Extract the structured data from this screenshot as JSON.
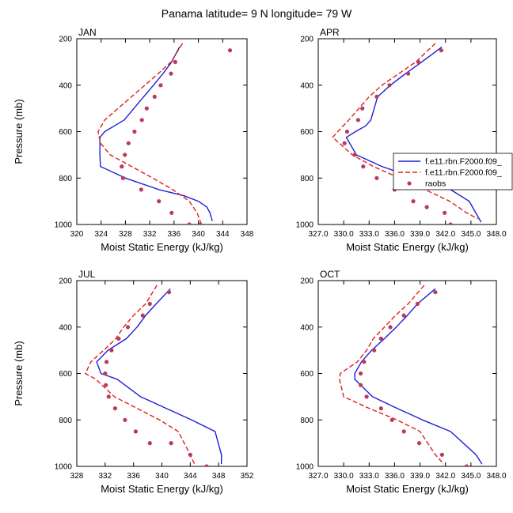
{
  "figure": {
    "title": "Panama  latitude= 9 N longitude= 79 W"
  },
  "legend": {
    "placement": "right of APR panel",
    "entries": [
      {
        "label": "f.e11.rbn.F2000.f09_",
        "style": "solid",
        "color": "#1f1fd6"
      },
      {
        "label": "f.e11.rbn.F2000.f09_",
        "style": "dashed",
        "color": "#e0201a"
      },
      {
        "label": "raobs",
        "style": "dot",
        "color": "#b83b5e"
      }
    ]
  },
  "chart_data": [
    {
      "type": "line",
      "panel": "JAN",
      "xlabel": "Moist Static Energy (kJ/kg)",
      "ylabel": "Pressure (mb)",
      "xlim": [
        320,
        348
      ],
      "xticks": [
        320,
        324,
        328,
        332,
        336,
        340,
        344,
        348
      ],
      "xtick_labels": [
        "320",
        "324",
        "328",
        "332",
        "336",
        "340",
        "344",
        "348"
      ],
      "ylim": [
        200,
        1000
      ],
      "yreverse": true,
      "yticks": [
        200,
        400,
        600,
        800,
        1000
      ],
      "ytick_labels": [
        "200",
        "400",
        "600",
        "800",
        "1000"
      ],
      "series": [
        {
          "color": "#1f1fd6",
          "style": "solid",
          "x": [
            336.9,
            335.6,
            334.2,
            332.6,
            331.0,
            329.4,
            327.8,
            326.2,
            324.6,
            323.8,
            323.8,
            323.9,
            328.0,
            333.5,
            337.5,
            340.0,
            341.4,
            341.9,
            342.3
          ],
          "y": [
            235,
            300,
            350,
            400,
            450,
            500,
            550,
            575,
            600,
            625,
            700,
            750,
            800,
            850,
            875,
            900,
            925,
            950,
            985
          ]
        },
        {
          "color": "#e0201a",
          "style": "dashed",
          "x": [
            337.4,
            335.5,
            333.4,
            331.2,
            329.0,
            326.8,
            324.6,
            323.5,
            323.9,
            325.5,
            329.0,
            332.5,
            335.8,
            338.5,
            339.8,
            340.5
          ],
          "y": [
            220,
            300,
            350,
            400,
            450,
            500,
            550,
            600,
            650,
            700,
            750,
            800,
            850,
            900,
            950,
            1000
          ]
        }
      ],
      "points": {
        "name": "raobs",
        "x": [
          345.2,
          336.2,
          335.5,
          333.8,
          332.8,
          331.5,
          330.7,
          329.5,
          328.5,
          327.9,
          327.4,
          327.6,
          330.6,
          333.5,
          335.6,
          338.5,
          340.3
        ],
        "y": [
          250,
          300,
          350,
          400,
          450,
          500,
          550,
          600,
          650,
          700,
          750,
          800,
          850,
          900,
          950,
          1000,
          1000
        ]
      }
    },
    {
      "type": "line",
      "panel": "APR",
      "xlabel": "Moist Static Energy (kJ/kg)",
      "ylabel": "",
      "xlim": [
        327,
        348
      ],
      "xticks": [
        327,
        330,
        333,
        336,
        339,
        342,
        345,
        348
      ],
      "xtick_labels": [
        "327.0",
        "330.0",
        "333.0",
        "336.0",
        "339.0",
        "342.0",
        "345.0",
        "348.0"
      ],
      "ylim": [
        200,
        1000
      ],
      "yreverse": true,
      "yticks": [
        200,
        400,
        600,
        800,
        1000
      ],
      "ytick_labels": [
        "200",
        "400",
        "600",
        "800",
        "1000"
      ],
      "series": [
        {
          "color": "#1f1fd6",
          "style": "solid",
          "x": [
            341.6,
            339.2,
            337.3,
            335.5,
            334.0,
            333.6,
            333.2,
            332.6,
            331.4,
            330.3,
            331.5,
            334.5,
            338.5,
            342.6,
            344.8,
            346.2
          ],
          "y": [
            235,
            300,
            350,
            400,
            450,
            500,
            550,
            575,
            600,
            625,
            700,
            750,
            800,
            850,
            900,
            990
          ]
        },
        {
          "color": "#e0201a",
          "style": "dashed",
          "x": [
            340.8,
            338.5,
            336.5,
            334.5,
            333.0,
            331.8,
            330.6,
            329.3,
            328.7,
            329.5,
            331.0,
            333.5,
            336.6,
            339.6,
            342.5,
            344.5,
            345.8
          ],
          "y": [
            220,
            300,
            350,
            400,
            450,
            500,
            550,
            600,
            625,
            650,
            700,
            750,
            800,
            850,
            900,
            950,
            975
          ]
        }
      ],
      "points": {
        "name": "raobs",
        "x": [
          341.5,
          338.8,
          337.6,
          335.4,
          333.9,
          332.2,
          331.7,
          330.4,
          330.1,
          331.3,
          332.3,
          333.9,
          336.0,
          338.2,
          339.8,
          341.9,
          342.6
        ],
        "y": [
          250,
          300,
          350,
          400,
          450,
          500,
          550,
          600,
          650,
          700,
          750,
          800,
          850,
          900,
          925,
          950,
          1000
        ]
      }
    },
    {
      "type": "line",
      "panel": "JUL",
      "xlabel": "Moist Static Energy (kJ/kg)",
      "ylabel": "Pressure (mb)",
      "xlim": [
        328,
        352
      ],
      "xticks": [
        328,
        332,
        336,
        340,
        344,
        348,
        352
      ],
      "xtick_labels": [
        "328",
        "332",
        "336",
        "340",
        "344",
        "348",
        "352"
      ],
      "ylim": [
        200,
        1000
      ],
      "yreverse": true,
      "yticks": [
        200,
        400,
        600,
        800,
        1000
      ],
      "ytick_labels": [
        "200",
        "400",
        "600",
        "800",
        "1000"
      ],
      "series": [
        {
          "color": "#1f1fd6",
          "style": "solid",
          "x": [
            341.2,
            339.2,
            337.7,
            336.5,
            335.0,
            332.4,
            330.8,
            331.4,
            333.7,
            337.0,
            340.6,
            344.2,
            347.5,
            348.4,
            348.4
          ],
          "y": [
            235,
            300,
            350,
            400,
            450,
            500,
            550,
            600,
            625,
            700,
            750,
            800,
            850,
            950,
            990
          ]
        },
        {
          "color": "#e0201a",
          "style": "dashed",
          "x": [
            339.3,
            337.7,
            336.0,
            334.6,
            333.5,
            331.8,
            330.0,
            329.2,
            330.7,
            333.3,
            336.5,
            339.7,
            342.3,
            344.0,
            344.6
          ],
          "y": [
            220,
            300,
            350,
            400,
            450,
            500,
            550,
            600,
            625,
            700,
            750,
            800,
            850,
            950,
            990
          ]
        }
      ],
      "points": {
        "name": "raobs",
        "x": [
          341.0,
          338.3,
          337.3,
          335.2,
          333.9,
          332.9,
          332.2,
          332.0,
          332.1,
          332.5,
          333.4,
          334.8,
          336.3,
          338.3,
          341.3,
          344.0,
          346.3
        ],
        "y": [
          250,
          300,
          350,
          400,
          450,
          500,
          550,
          600,
          650,
          700,
          750,
          800,
          850,
          900,
          900,
          950,
          1000
        ]
      }
    },
    {
      "type": "line",
      "panel": "OCT",
      "xlabel": "Moist Static Energy (kJ/kg)",
      "ylabel": "",
      "xlim": [
        327,
        348
      ],
      "xticks": [
        327,
        330,
        333,
        336,
        339,
        342,
        345,
        348
      ],
      "xtick_labels": [
        "327.0",
        "330.0",
        "333.0",
        "336.0",
        "339.0",
        "342.0",
        "345.0",
        "348.0"
      ],
      "ylim": [
        200,
        1000
      ],
      "yreverse": true,
      "yticks": [
        200,
        400,
        600,
        800,
        1000
      ],
      "ytick_labels": [
        "200",
        "400",
        "600",
        "800",
        "1000"
      ],
      "series": [
        {
          "color": "#1f1fd6",
          "style": "solid",
          "x": [
            340.8,
            338.7,
            337.5,
            336.2,
            334.8,
            333.3,
            332.1,
            331.3,
            331.3,
            333.4,
            336.3,
            339.3,
            342.6,
            345.6,
            346.3
          ],
          "y": [
            235,
            300,
            350,
            400,
            450,
            500,
            550,
            600,
            625,
            700,
            750,
            800,
            850,
            950,
            990
          ]
        },
        {
          "color": "#e0201a",
          "style": "dashed",
          "x": [
            339.5,
            337.6,
            336.1,
            334.8,
            333.5,
            332.7,
            331.6,
            329.6,
            329.5,
            330.0,
            333.0,
            336.3,
            339.0,
            340.8,
            341.8
          ],
          "y": [
            220,
            300,
            350,
            400,
            450,
            500,
            550,
            600,
            625,
            700,
            750,
            800,
            850,
            950,
            990
          ]
        }
      ],
      "points": {
        "name": "raobs",
        "x": [
          340.8,
          338.7,
          337.1,
          335.5,
          334.4,
          333.6,
          332.4,
          332.0,
          332.0,
          332.7,
          334.4,
          335.7,
          337.1,
          338.9,
          341.6,
          344.5
        ],
        "y": [
          250,
          300,
          350,
          400,
          450,
          500,
          550,
          600,
          650,
          700,
          750,
          800,
          850,
          900,
          950,
          1000
        ]
      }
    }
  ]
}
